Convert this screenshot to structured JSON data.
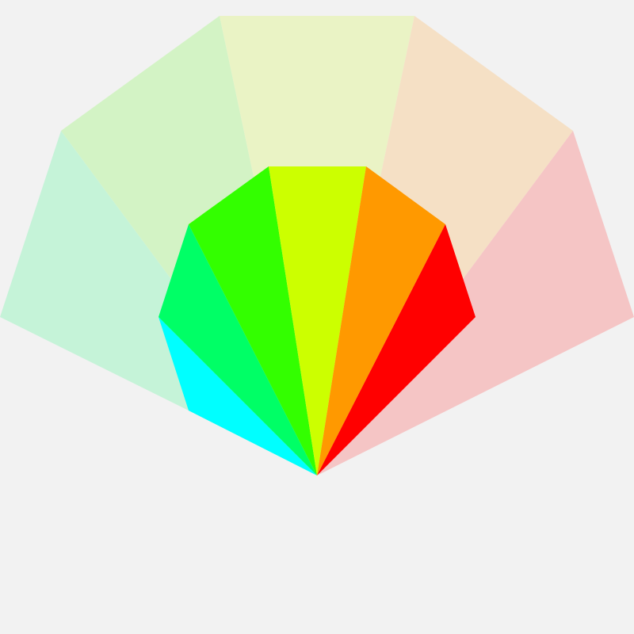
{
  "background": "#f2f2f2",
  "outer_fan": {
    "wedges": [
      {
        "name": "outer-wedge-mint",
        "color": "#c5f3d8"
      },
      {
        "name": "outer-wedge-green",
        "color": "#d3f3c5"
      },
      {
        "name": "outer-wedge-yellow",
        "color": "#eaf3c5"
      },
      {
        "name": "outer-wedge-peach",
        "color": "#f5e0c5"
      },
      {
        "name": "outer-wedge-pink",
        "color": "#f5c5c5"
      }
    ]
  },
  "inner_fan": {
    "wedges": [
      {
        "name": "inner-wedge-cyan",
        "color": "#00ffff"
      },
      {
        "name": "inner-wedge-spring-green",
        "color": "#00ff66"
      },
      {
        "name": "inner-wedge-green",
        "color": "#33ff00"
      },
      {
        "name": "inner-wedge-lime",
        "color": "#ccff00"
      },
      {
        "name": "inner-wedge-orange",
        "color": "#ff9900"
      },
      {
        "name": "inner-wedge-red",
        "color": "#ff0000"
      }
    ]
  }
}
